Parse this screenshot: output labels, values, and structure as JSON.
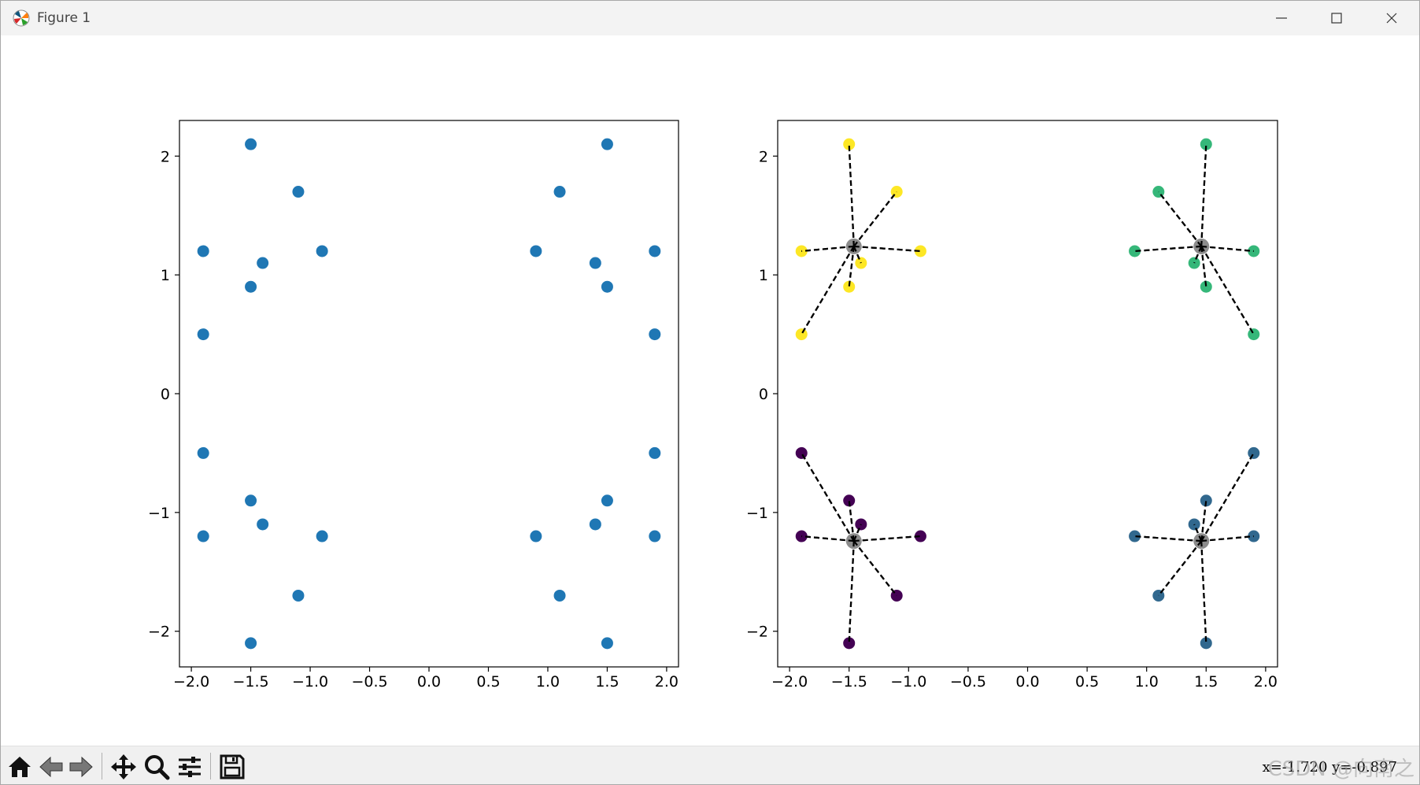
{
  "window": {
    "title": "Figure 1",
    "controls": {
      "minimize": "minimize",
      "maximize": "maximize",
      "close": "close"
    }
  },
  "toolbar": {
    "buttons": [
      "home-icon",
      "back-arrow-icon",
      "forward-arrow-icon",
      "pan-icon",
      "zoom-icon",
      "configure-subplots-icon",
      "save-icon"
    ],
    "coordinates": "x=-1.720  y=-0.897",
    "watermark": "CSDN @向南之"
  },
  "chart_data": [
    {
      "type": "scatter",
      "title": "",
      "xlabel": "",
      "ylabel": "",
      "xlim": [
        -2.1,
        2.1
      ],
      "ylim": [
        -2.3,
        2.3
      ],
      "xticks": [
        "−2.0",
        "−1.5",
        "−1.0",
        "−0.5",
        "0.0",
        "0.5",
        "1.0",
        "1.5",
        "2.0"
      ],
      "yticks": [
        "−2",
        "−1",
        "0",
        "1",
        "2"
      ],
      "xtick_values": [
        -2.0,
        -1.5,
        -1.0,
        -0.5,
        0.0,
        0.5,
        1.0,
        1.5,
        2.0
      ],
      "ytick_values": [
        -2,
        -1,
        0,
        1,
        2
      ],
      "color": "#1f77b4",
      "points": [
        [
          -1.5,
          2.1
        ],
        [
          -1.1,
          1.7
        ],
        [
          -1.9,
          1.2
        ],
        [
          -0.9,
          1.2
        ],
        [
          -1.4,
          1.1
        ],
        [
          -1.5,
          0.9
        ],
        [
          -1.9,
          0.5
        ],
        [
          1.5,
          2.1
        ],
        [
          1.1,
          1.7
        ],
        [
          0.9,
          1.2
        ],
        [
          1.9,
          1.2
        ],
        [
          1.4,
          1.1
        ],
        [
          1.5,
          0.9
        ],
        [
          1.9,
          0.5
        ],
        [
          -1.9,
          -0.5
        ],
        [
          -1.5,
          -0.9
        ],
        [
          -1.4,
          -1.1
        ],
        [
          -1.9,
          -1.2
        ],
        [
          -0.9,
          -1.2
        ],
        [
          -1.1,
          -1.7
        ],
        [
          -1.5,
          -2.1
        ],
        [
          1.9,
          -0.5
        ],
        [
          1.5,
          -0.9
        ],
        [
          1.4,
          -1.1
        ],
        [
          0.9,
          -1.2
        ],
        [
          1.9,
          -1.2
        ],
        [
          1.1,
          -1.7
        ],
        [
          1.5,
          -2.1
        ]
      ]
    },
    {
      "type": "scatter",
      "title": "",
      "xlabel": "",
      "ylabel": "",
      "xlim": [
        -2.1,
        2.1
      ],
      "ylim": [
        -2.3,
        2.3
      ],
      "xticks": [
        "−2.0",
        "−1.5",
        "−1.0",
        "−0.5",
        "0.0",
        "0.5",
        "1.0",
        "1.5",
        "2.0"
      ],
      "yticks": [
        "−2",
        "−1",
        "0",
        "1",
        "2"
      ],
      "xtick_values": [
        -2.0,
        -1.5,
        -1.0,
        -0.5,
        0.0,
        0.5,
        1.0,
        1.5,
        2.0
      ],
      "ytick_values": [
        -2,
        -1,
        0,
        1,
        2
      ],
      "centroid_color": "#7f7f7f",
      "connector": "dashed black",
      "clusters": [
        {
          "color": "#fde725",
          "centroid": [
            -1.46,
            1.24
          ],
          "points": [
            [
              -1.5,
              2.1
            ],
            [
              -1.1,
              1.7
            ],
            [
              -1.9,
              1.2
            ],
            [
              -0.9,
              1.2
            ],
            [
              -1.4,
              1.1
            ],
            [
              -1.5,
              0.9
            ],
            [
              -1.9,
              0.5
            ]
          ]
        },
        {
          "color": "#35b779",
          "centroid": [
            1.46,
            1.24
          ],
          "points": [
            [
              1.5,
              2.1
            ],
            [
              1.1,
              1.7
            ],
            [
              0.9,
              1.2
            ],
            [
              1.9,
              1.2
            ],
            [
              1.4,
              1.1
            ],
            [
              1.5,
              0.9
            ],
            [
              1.9,
              0.5
            ]
          ]
        },
        {
          "color": "#440154",
          "centroid": [
            -1.46,
            -1.24
          ],
          "points": [
            [
              -1.9,
              -0.5
            ],
            [
              -1.5,
              -0.9
            ],
            [
              -1.4,
              -1.1
            ],
            [
              -1.9,
              -1.2
            ],
            [
              -0.9,
              -1.2
            ],
            [
              -1.1,
              -1.7
            ],
            [
              -1.5,
              -2.1
            ]
          ]
        },
        {
          "color": "#31688e",
          "centroid": [
            1.46,
            -1.24
          ],
          "points": [
            [
              1.9,
              -0.5
            ],
            [
              1.5,
              -0.9
            ],
            [
              1.4,
              -1.1
            ],
            [
              0.9,
              -1.2
            ],
            [
              1.9,
              -1.2
            ],
            [
              1.1,
              -1.7
            ],
            [
              1.5,
              -2.1
            ]
          ]
        }
      ]
    }
  ]
}
